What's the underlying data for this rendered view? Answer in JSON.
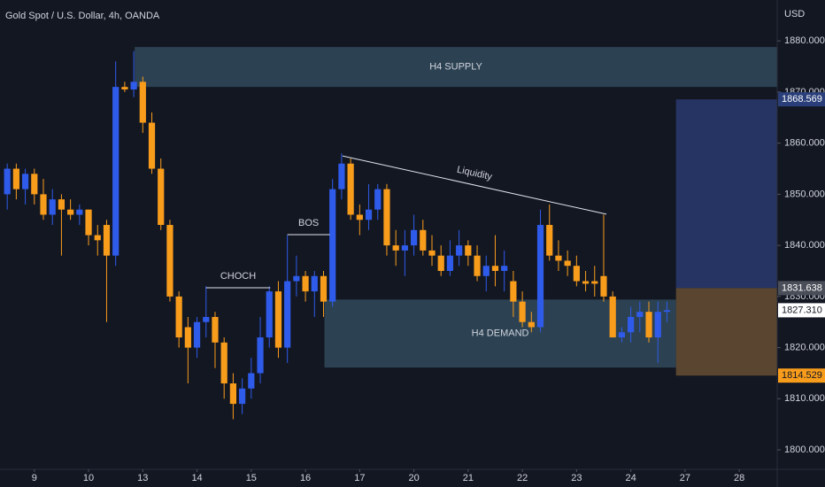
{
  "chart_data": {
    "type": "candlestick",
    "title": "Gold Spot / U.S. Dollar, 4h, OANDA",
    "currency": "USD",
    "up_color": "#2f5bea",
    "down_color": "#f89c1c",
    "ylim": [
      1796.2,
      1888.0
    ],
    "yticks": [
      {
        "value": 1800,
        "label": "1800.000"
      },
      {
        "value": 1810,
        "label": "1810.000"
      },
      {
        "value": 1820,
        "label": "1820.000"
      },
      {
        "value": 1830,
        "label": "1830.000"
      },
      {
        "value": 1840,
        "label": "1840.000"
      },
      {
        "value": 1850,
        "label": "1850.000"
      },
      {
        "value": 1860,
        "label": "1860.000"
      },
      {
        "value": 1870,
        "label": "1870.000"
      },
      {
        "value": 1880,
        "label": "1880.000"
      }
    ],
    "xlim": [
      -0.8,
      85.2
    ],
    "xticks": [
      {
        "value": 3,
        "label": "9"
      },
      {
        "value": 9,
        "label": "10"
      },
      {
        "value": 15,
        "label": "13"
      },
      {
        "value": 21,
        "label": "14"
      },
      {
        "value": 27,
        "label": "15"
      },
      {
        "value": 33,
        "label": "16"
      },
      {
        "value": 39,
        "label": "17"
      },
      {
        "value": 45,
        "label": "20"
      },
      {
        "value": 51,
        "label": "21"
      },
      {
        "value": 57,
        "label": "22"
      },
      {
        "value": 63,
        "label": "23"
      },
      {
        "value": 69,
        "label": "24"
      },
      {
        "value": 75,
        "label": "27"
      },
      {
        "value": 81,
        "label": "28"
      }
    ],
    "ohlc": [
      [
        1850,
        1856,
        1847,
        1855
      ],
      [
        1855,
        1856,
        1849,
        1851
      ],
      [
        1851,
        1855,
        1848,
        1854
      ],
      [
        1854,
        1855,
        1848,
        1850
      ],
      [
        1850,
        1853,
        1845,
        1846
      ],
      [
        1846,
        1851,
        1844,
        1849
      ],
      [
        1849,
        1850,
        1838,
        1847
      ],
      [
        1847,
        1849,
        1845,
        1846
      ],
      [
        1846,
        1848,
        1844,
        1847
      ],
      [
        1847,
        1847,
        1840,
        1842
      ],
      [
        1842,
        1844,
        1838,
        1841
      ],
      [
        1844,
        1845,
        1825,
        1838
      ],
      [
        1838,
        1876,
        1836,
        1871
      ],
      [
        1871,
        1872,
        1870,
        1870.5
      ],
      [
        1870.5,
        1878,
        1869,
        1872
      ],
      [
        1872,
        1873,
        1862,
        1864
      ],
      [
        1864,
        1866,
        1854,
        1855
      ],
      [
        1855,
        1857,
        1843,
        1844
      ],
      [
        1844,
        1845,
        1829,
        1830
      ],
      [
        1830,
        1831,
        1820,
        1822
      ],
      [
        1824,
        1826,
        1813,
        1820
      ],
      [
        1820,
        1826,
        1818,
        1825
      ],
      [
        1825,
        1832,
        1822,
        1826
      ],
      [
        1826,
        1827,
        1816,
        1821
      ],
      [
        1821,
        1822,
        1810,
        1813
      ],
      [
        1813,
        1815,
        1806,
        1809
      ],
      [
        1809,
        1814,
        1807,
        1812
      ],
      [
        1812,
        1818,
        1810,
        1815
      ],
      [
        1815,
        1826,
        1813,
        1822
      ],
      [
        1822,
        1832,
        1820,
        1831
      ],
      [
        1831,
        1833,
        1818,
        1820
      ],
      [
        1820,
        1842,
        1817,
        1833
      ],
      [
        1833,
        1838,
        1830,
        1834
      ],
      [
        1834,
        1835,
        1829,
        1831
      ],
      [
        1831,
        1835,
        1826,
        1834
      ],
      [
        1834,
        1835,
        1826,
        1829
      ],
      [
        1829,
        1853,
        1828,
        1851
      ],
      [
        1851,
        1858,
        1849,
        1856
      ],
      [
        1856,
        1857,
        1845,
        1846
      ],
      [
        1846,
        1848,
        1842,
        1845
      ],
      [
        1845,
        1852,
        1843,
        1847
      ],
      [
        1847,
        1852,
        1845,
        1851
      ],
      [
        1851,
        1852,
        1838,
        1840
      ],
      [
        1840,
        1843,
        1836,
        1839
      ],
      [
        1839,
        1843,
        1834,
        1840
      ],
      [
        1840,
        1846,
        1838,
        1843
      ],
      [
        1843,
        1845,
        1838,
        1839
      ],
      [
        1839,
        1842,
        1836,
        1838
      ],
      [
        1838,
        1840,
        1834,
        1835
      ],
      [
        1835,
        1841,
        1834,
        1838
      ],
      [
        1838,
        1843,
        1836,
        1840
      ],
      [
        1840,
        1841,
        1836,
        1838
      ],
      [
        1838,
        1840,
        1833,
        1834
      ],
      [
        1834,
        1838,
        1831,
        1836
      ],
      [
        1836,
        1842,
        1832,
        1835
      ],
      [
        1835,
        1839,
        1831,
        1836
      ],
      [
        1833,
        1835,
        1826,
        1829
      ],
      [
        1829,
        1831,
        1824,
        1825
      ],
      [
        1825,
        1827,
        1823,
        1824
      ],
      [
        1824,
        1847,
        1823,
        1844
      ],
      [
        1844,
        1848,
        1837,
        1838
      ],
      [
        1838,
        1841,
        1835,
        1837
      ],
      [
        1837,
        1839,
        1834,
        1836
      ],
      [
        1836,
        1838,
        1832,
        1833
      ],
      [
        1833,
        1835,
        1831,
        1832.5
      ],
      [
        1833,
        1836,
        1830,
        1832.5
      ],
      [
        1834,
        1846,
        1829,
        1830
      ],
      [
        1830,
        1831,
        1822,
        1822
      ],
      [
        1822,
        1824,
        1821,
        1823
      ],
      [
        1823,
        1828,
        1821,
        1826
      ],
      [
        1826,
        1829,
        1823,
        1827
      ],
      [
        1827,
        1829,
        1821,
        1822
      ],
      [
        1822,
        1829,
        1817,
        1827
      ],
      [
        1827,
        1829,
        1825,
        1827.31
      ]
    ],
    "zones": [
      {
        "label": "H4 SUPPLY",
        "x0": 14.1,
        "low": 1871.0,
        "high": 1878.8
      },
      {
        "label": "H4 DEMAND",
        "x0": 35.1,
        "x1": 74.0,
        "low": 1816.1,
        "high": 1829.4
      }
    ],
    "lines": [
      {
        "label": "CHOCH",
        "x0": 22.0,
        "x1": 29.1,
        "y0": 1831.7,
        "y1": 1831.7
      },
      {
        "label": "BOS",
        "x0": 31.0,
        "x1": 35.7,
        "y0": 1842.1,
        "y1": 1842.1
      },
      {
        "label": "Liquidity",
        "x0": 37.1,
        "x1": 66.3,
        "y0": 1857.5,
        "y1": 1846.1
      }
    ],
    "position": {
      "x0": 74.0,
      "target": 1868.569,
      "entry": 1831.638,
      "stop": 1814.529
    },
    "last_price": {
      "value": 1827.31,
      "label": "1827.310"
    }
  }
}
